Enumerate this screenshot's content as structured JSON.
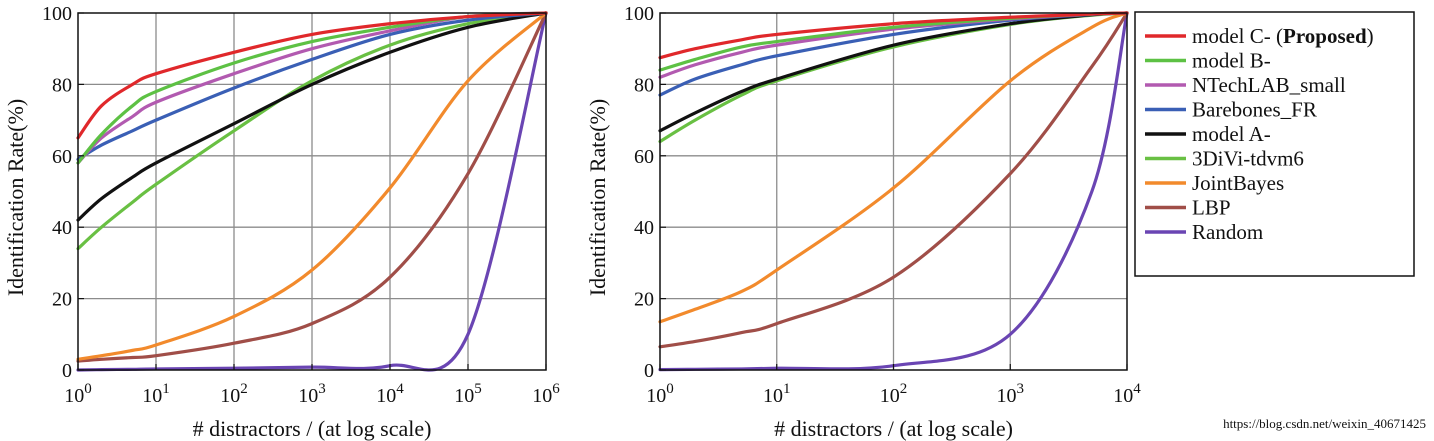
{
  "watermark": "https://blog.csdn.net/weixin_40671425",
  "colors": {
    "model C-": "#e0282b",
    "model B-": "#5dc144",
    "NTechLAB_small": "#b25ab0",
    "Barebones_FR": "#3a5fb5",
    "model A-": "#111111",
    "3DiVi-tdvm6": "#69c043",
    "JointBayes": "#f28a2c",
    "LBP": "#a04e48",
    "Random": "#6a45b3"
  },
  "legend": {
    "placement": "right",
    "entries": [
      {
        "name": "model C-",
        "suffix": "(Proposed)",
        "suffix_bold": true,
        "suffix_close": ")"
      },
      {
        "name": "model B-"
      },
      {
        "name": "NTechLAB_small"
      },
      {
        "name": "Barebones_FR"
      },
      {
        "name": "model A-"
      },
      {
        "name": "3DiVi-tdvm6"
      },
      {
        "name": "JointBayes"
      },
      {
        "name": "LBP"
      },
      {
        "name": "Random"
      }
    ]
  },
  "chart_data": [
    {
      "type": "line",
      "xscale": "log",
      "xlabel": "# distractors / (at log scale)",
      "ylabel": "Identification Rate(%)",
      "xlim": [
        1,
        1000000
      ],
      "ylim": [
        0,
        100
      ],
      "grid": true,
      "xticks": [
        {
          "base": "10",
          "exp": "0"
        },
        {
          "base": "10",
          "exp": "1"
        },
        {
          "base": "10",
          "exp": "2"
        },
        {
          "base": "10",
          "exp": "3"
        },
        {
          "base": "10",
          "exp": "4"
        },
        {
          "base": "10",
          "exp": "5"
        },
        {
          "base": "10",
          "exp": "6"
        }
      ],
      "yticks": [
        "0",
        "20",
        "40",
        "60",
        "80",
        "100"
      ],
      "x": [
        1,
        2,
        5,
        10,
        100,
        1000,
        10000,
        100000,
        1000000
      ],
      "series": [
        {
          "name": "model C-",
          "values": [
            65,
            74,
            80,
            83,
            89,
            94,
            97,
            99,
            100
          ]
        },
        {
          "name": "model B-",
          "values": [
            58,
            66,
            74,
            78,
            86,
            92,
            96,
            99,
            100
          ]
        },
        {
          "name": "NTechLAB_small",
          "values": [
            58,
            65,
            71,
            75,
            83,
            90,
            95,
            99,
            100
          ]
        },
        {
          "name": "Barebones_FR",
          "values": [
            59,
            63,
            67,
            70,
            79,
            87,
            94,
            98,
            100
          ]
        },
        {
          "name": "model A-",
          "values": [
            42,
            48,
            54,
            58,
            69,
            80,
            89,
            96,
            100
          ]
        },
        {
          "name": "3DiVi-tdvm6",
          "values": [
            34,
            40,
            47,
            52,
            67,
            81,
            91,
            97,
            100
          ]
        },
        {
          "name": "JointBayes",
          "values": [
            3,
            4,
            5.5,
            7,
            15,
            28,
            51,
            81,
            100
          ]
        },
        {
          "name": "LBP",
          "values": [
            2.5,
            3,
            3.5,
            4,
            7.5,
            13,
            26,
            55,
            100
          ]
        },
        {
          "name": "Random",
          "values": [
            0,
            0.1,
            0.2,
            0.3,
            0.5,
            0.8,
            1.2,
            10,
            100
          ]
        }
      ]
    },
    {
      "type": "line",
      "xscale": "log",
      "xlabel": "# distractors / (at log scale)",
      "ylabel": "Identification Rate(%)",
      "xlim": [
        1,
        10000
      ],
      "ylim": [
        0,
        100
      ],
      "grid": true,
      "xticks": [
        {
          "base": "10",
          "exp": "0"
        },
        {
          "base": "10",
          "exp": "1"
        },
        {
          "base": "10",
          "exp": "2"
        },
        {
          "base": "10",
          "exp": "3"
        },
        {
          "base": "10",
          "exp": "4"
        }
      ],
      "yticks": [
        "0",
        "20",
        "40",
        "60",
        "80",
        "100"
      ],
      "x": [
        1,
        2,
        5,
        10,
        100,
        1000,
        5000,
        10000
      ],
      "series": [
        {
          "name": "model C-",
          "values": [
            87.5,
            90,
            92.5,
            94,
            97,
            98.8,
            99.7,
            100
          ]
        },
        {
          "name": "model B-",
          "values": [
            84,
            87,
            90.5,
            92,
            96,
            98.5,
            99.7,
            100
          ]
        },
        {
          "name": "NTechLAB_small",
          "values": [
            82,
            85.5,
            89,
            91,
            95.5,
            98.3,
            99.7,
            100
          ]
        },
        {
          "name": "Barebones_FR",
          "values": [
            77,
            81.5,
            85.5,
            88,
            94,
            98,
            99.6,
            100
          ]
        },
        {
          "name": "model A-",
          "values": [
            67,
            72,
            78,
            81.5,
            91,
            97,
            99.5,
            100
          ]
        },
        {
          "name": "3DiVi-tdvm6",
          "values": [
            64,
            70,
            77,
            81,
            90.5,
            96.8,
            99.4,
            100
          ]
        },
        {
          "name": "JointBayes",
          "values": [
            13.5,
            17,
            22,
            28,
            51,
            81,
            96,
            100
          ]
        },
        {
          "name": "LBP",
          "values": [
            6.5,
            8,
            10.5,
            13,
            26,
            55,
            85,
            100
          ]
        },
        {
          "name": "Random",
          "values": [
            0.1,
            0.2,
            0.3,
            0.5,
            1.2,
            10,
            50,
            100
          ]
        }
      ]
    }
  ]
}
